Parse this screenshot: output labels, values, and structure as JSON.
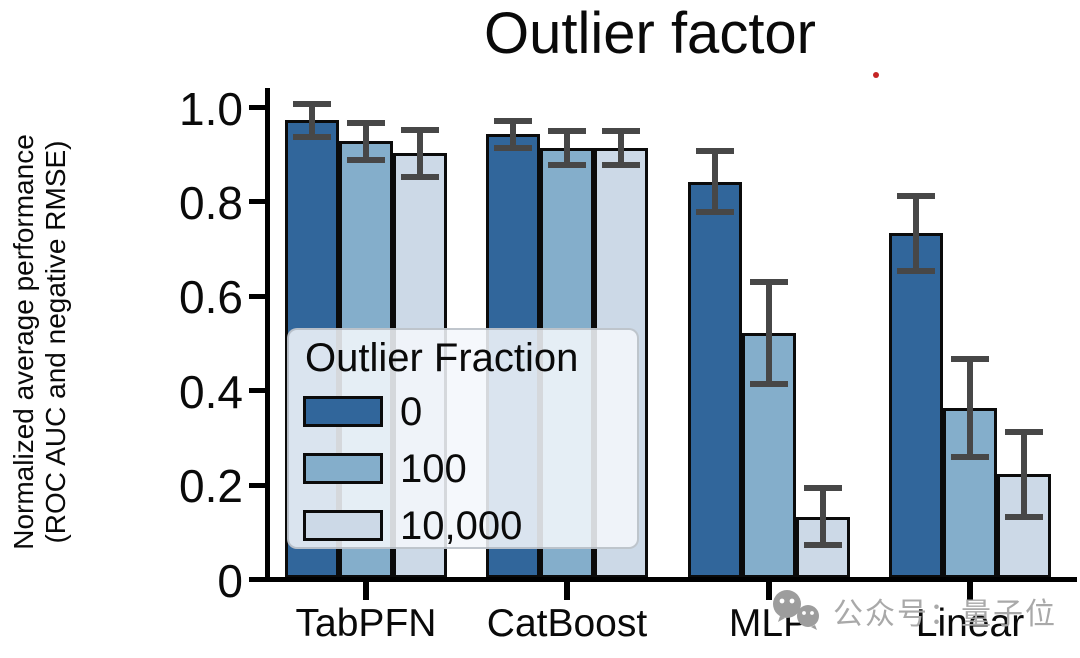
{
  "title": "Outlier factor",
  "y_axis": {
    "label_line1": "Normalized average performance",
    "label_line2": "(ROC AUC and negative RMSE)",
    "tick_labels": [
      "1.0",
      "0.8",
      "0.6",
      "0.4",
      "0.2",
      "0"
    ]
  },
  "x_axis": {
    "tick_labels": [
      "TabPFN",
      "CatBoost",
      "MLP",
      "Linear"
    ]
  },
  "legend": {
    "title": "Outlier Fraction",
    "entries": [
      "0",
      "100",
      "10,000"
    ]
  },
  "watermark": {
    "icon": "wechat-icon",
    "text": "公众号：量子位",
    "color": "#a9a9a9"
  },
  "annotations": {
    "red_dot_color": "#c52525"
  },
  "colors": {
    "bar_dark": "#31669b",
    "bar_medium": "#84aecb",
    "bar_light": "#ccd9e7",
    "bar_edge": "#0b0b0b",
    "error_bar": "#474747",
    "axis": "#000000",
    "legend_bg": "rgba(243,247,251,0.87)"
  },
  "chart_data": {
    "type": "bar",
    "title": "Outlier factor",
    "xlabel": "",
    "ylabel": "Normalized average performance (ROC AUC and negative RMSE)",
    "ylim": [
      0,
      1.05
    ],
    "yticks": [
      1.0,
      0.8,
      0.6,
      0.4,
      0.2,
      0
    ],
    "categories": [
      "TabPFN",
      "CatBoost",
      "MLP",
      "Linear"
    ],
    "grid": false,
    "error_bars": true,
    "legend_title": "Outlier Fraction",
    "legend_position": "center left",
    "series": [
      {
        "name": "0",
        "color": "#31669b",
        "values": [
          0.97,
          0.94,
          0.84,
          0.73
        ],
        "errors": [
          0.035,
          0.028,
          0.065,
          0.08
        ]
      },
      {
        "name": "100",
        "color": "#84aecb",
        "values": [
          0.925,
          0.91,
          0.52,
          0.36
        ],
        "errors": [
          0.04,
          0.036,
          0.108,
          0.104
        ]
      },
      {
        "name": "10,000",
        "color": "#ccd9e7",
        "values": [
          0.9,
          0.91,
          0.13,
          0.22
        ],
        "errors": [
          0.05,
          0.036,
          0.06,
          0.09
        ]
      }
    ]
  }
}
